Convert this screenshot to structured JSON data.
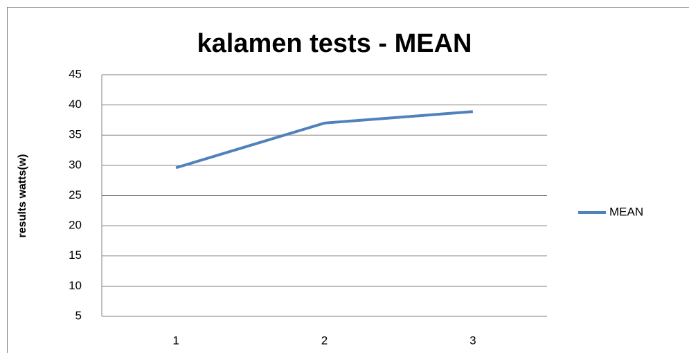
{
  "chart_data": {
    "type": "line",
    "title": "kalamen tests - MEAN",
    "y_label": "results watts(w)",
    "categories": [
      "1",
      "2",
      "3"
    ],
    "series": [
      {
        "name": "MEAN",
        "color": "#4f81bd",
        "values": [
          29.6,
          37.0,
          38.9
        ]
      }
    ],
    "ylim": [
      5,
      45
    ],
    "yticks": [
      5,
      10,
      15,
      20,
      25,
      30,
      35,
      40,
      45
    ],
    "grid": true,
    "legend": "right"
  }
}
